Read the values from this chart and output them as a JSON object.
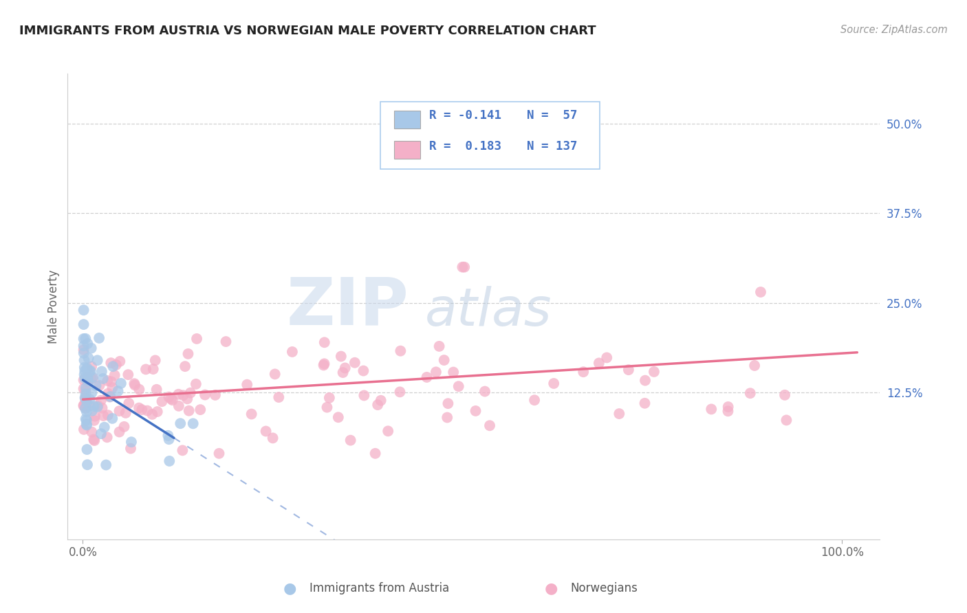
{
  "title": "IMMIGRANTS FROM AUSTRIA VS NORWEGIAN MALE POVERTY CORRELATION CHART",
  "source_text": "Source: ZipAtlas.com",
  "ylabel": "Male Poverty",
  "yticks_right": [
    0.0,
    0.125,
    0.25,
    0.375,
    0.5
  ],
  "ytick_labels_right": [
    "",
    "12.5%",
    "25.0%",
    "37.5%",
    "50.0%"
  ],
  "xlim": [
    -0.02,
    1.05
  ],
  "ylim": [
    -0.08,
    0.57
  ],
  "color_austria": "#a8c8e8",
  "color_norway": "#f4b0c8",
  "color_austria_line": "#4472c4",
  "color_norway_line": "#e87090",
  "color_legend_r": "#4472c4",
  "watermark_zip": "ZIP",
  "watermark_atlas": "atlas",
  "watermark_color_zip": "#c8d4e8",
  "watermark_color_atlas": "#b8c8d8"
}
